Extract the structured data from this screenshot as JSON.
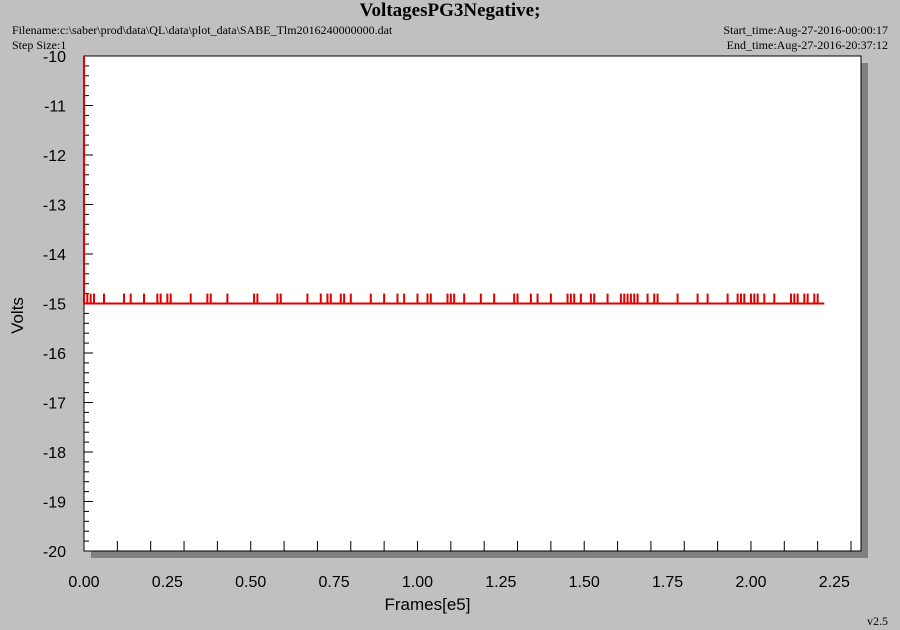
{
  "header": {
    "title": "VoltagesPG3Negative;",
    "filename": "Filename:c:\\saber\\prod\\data\\QL\\data\\plot_data\\SABE_Tlm2016240000000.dat",
    "step_size": "Step Size:1",
    "start_time": "Start_time:Aug-27-2016-00:00:17",
    "end_time": "End_time:Aug-27-2016-20:37:12",
    "version": "v2.5"
  },
  "colors": {
    "background": "#c0c0c0",
    "plot_area": "#ffffff",
    "series": "#e00000",
    "shadow": "#808080"
  },
  "chart_data": {
    "type": "line",
    "title": "VoltagesPG3Negative;",
    "xlabel": "Frames[e5]",
    "ylabel": "Volts",
    "xlim": [
      0,
      2.33
    ],
    "ylim": [
      -20,
      -10
    ],
    "x_ticks": [
      "0.00",
      "0.25",
      "0.50",
      "0.75",
      "1.00",
      "1.25",
      "1.50",
      "1.75",
      "2.00",
      "2.25"
    ],
    "x_tick_values": [
      0,
      0.25,
      0.5,
      0.75,
      1.0,
      1.25,
      1.5,
      1.75,
      2.0,
      2.25
    ],
    "y_ticks": [
      "-10",
      "-11",
      "-12",
      "-13",
      "-14",
      "-15",
      "-16",
      "-17",
      "-18",
      "-19",
      "-20"
    ],
    "y_tick_values": [
      -10,
      -11,
      -12,
      -13,
      -14,
      -15,
      -16,
      -17,
      -18,
      -19,
      -20
    ],
    "grid": false,
    "series": [
      {
        "baseline": -15.0,
        "x_range": [
          0,
          2.22
        ],
        "initial_value": -10.0,
        "spike_value": -14.8,
        "spike_x": [
          0.01,
          0.02,
          0.03,
          0.06,
          0.12,
          0.14,
          0.18,
          0.22,
          0.23,
          0.25,
          0.26,
          0.32,
          0.37,
          0.38,
          0.43,
          0.51,
          0.52,
          0.58,
          0.59,
          0.67,
          0.71,
          0.73,
          0.74,
          0.77,
          0.78,
          0.8,
          0.86,
          0.9,
          0.94,
          0.96,
          1.0,
          1.03,
          1.04,
          1.09,
          1.1,
          1.11,
          1.14,
          1.19,
          1.23,
          1.29,
          1.3,
          1.34,
          1.36,
          1.4,
          1.45,
          1.46,
          1.47,
          1.49,
          1.52,
          1.53,
          1.57,
          1.61,
          1.62,
          1.63,
          1.64,
          1.65,
          1.66,
          1.69,
          1.71,
          1.72,
          1.78,
          1.84,
          1.87,
          1.93,
          1.96,
          1.97,
          1.98,
          2.0,
          2.01,
          2.02,
          2.04,
          2.07,
          2.12,
          2.13,
          2.14,
          2.16,
          2.17,
          2.19,
          2.2
        ]
      }
    ]
  }
}
